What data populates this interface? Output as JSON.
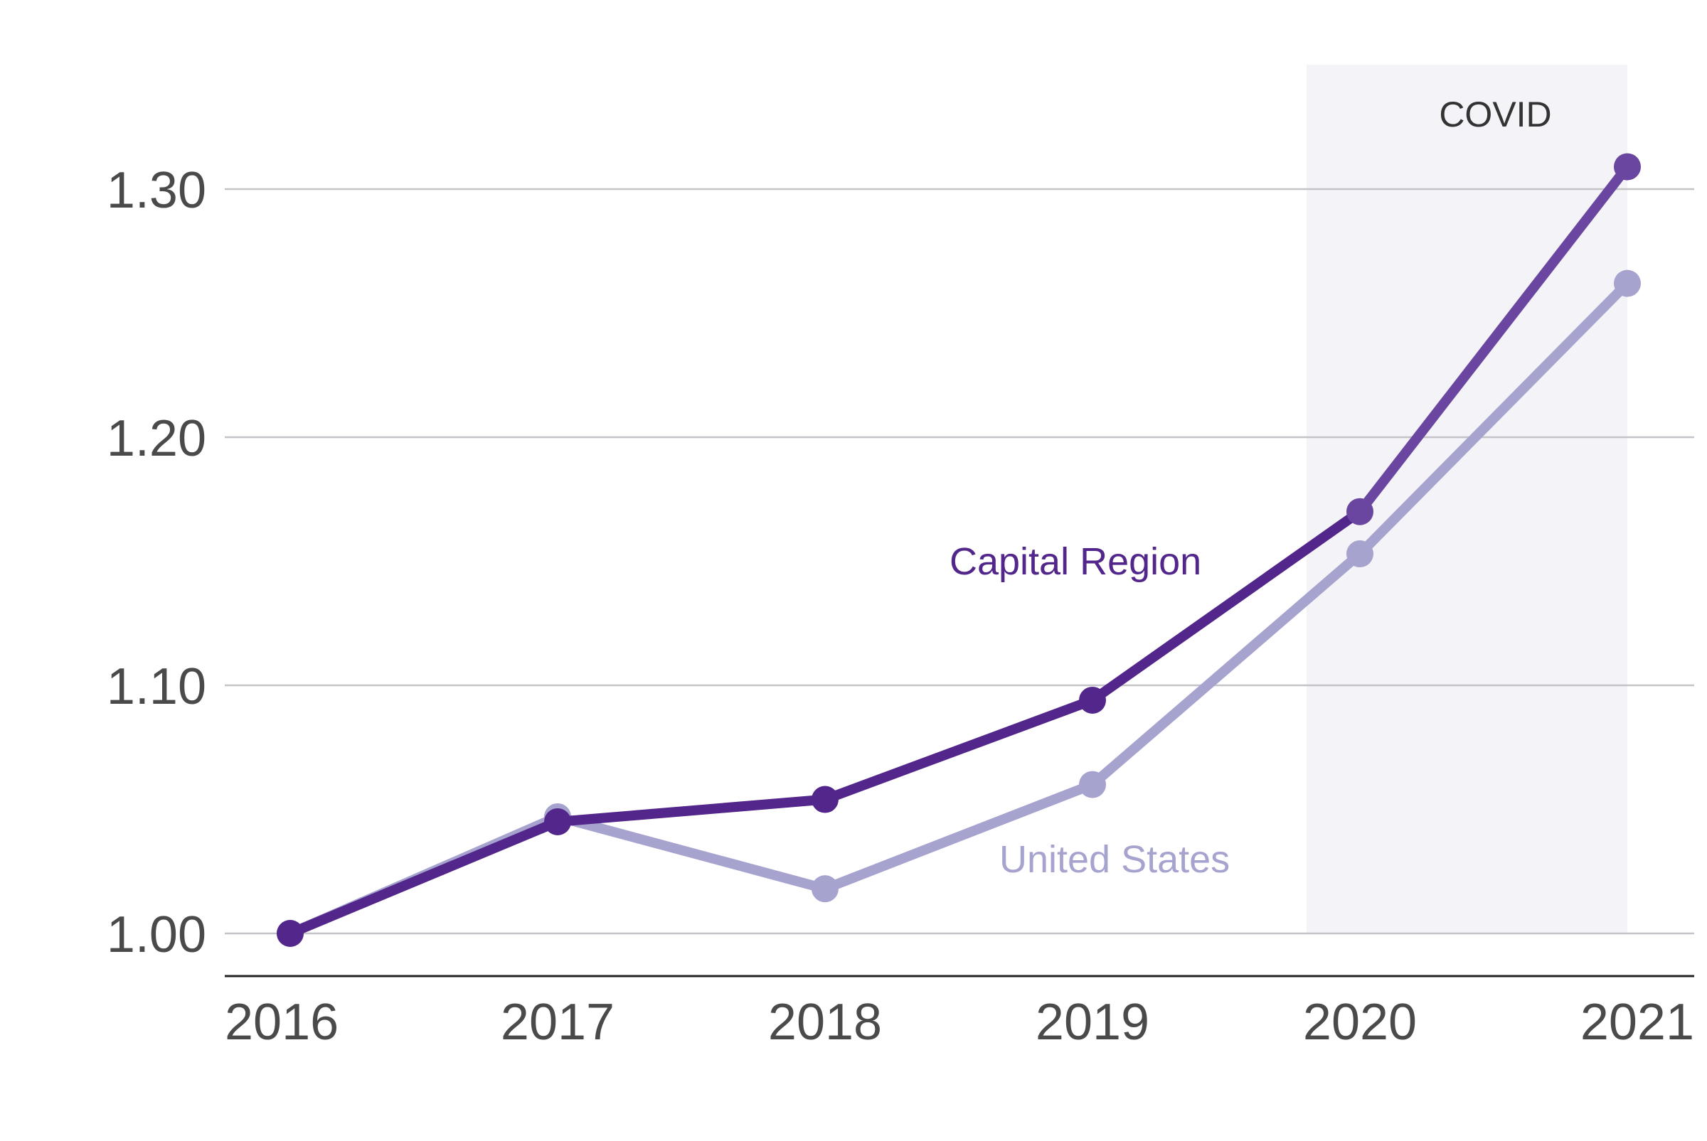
{
  "chart_data": {
    "type": "line",
    "title": "",
    "xlabel": "",
    "ylabel": "",
    "x": [
      "2016",
      "2017",
      "2018",
      "2019",
      "2020",
      "2021"
    ],
    "ylim": [
      0.983,
      1.35
    ],
    "y_ticks": [
      "1.00",
      "1.10",
      "1.20",
      "1.30"
    ],
    "grid": true,
    "legend": "inline-labels",
    "series": [
      {
        "name": "United States",
        "values": [
          1.0,
          1.047,
          1.018,
          1.06,
          1.153,
          1.262
        ],
        "color": "#a7a3cf"
      },
      {
        "name": "Capital Region",
        "values": [
          1.0,
          1.045,
          1.054,
          1.094,
          1.17,
          1.309
        ],
        "color": "#52268a"
      }
    ],
    "annotations": [
      {
        "label": "COVID",
        "x_start": "2020",
        "x_end": "2021",
        "fill": "#f3f3f8"
      }
    ],
    "covid_overlay_color": "#6a46a0"
  }
}
